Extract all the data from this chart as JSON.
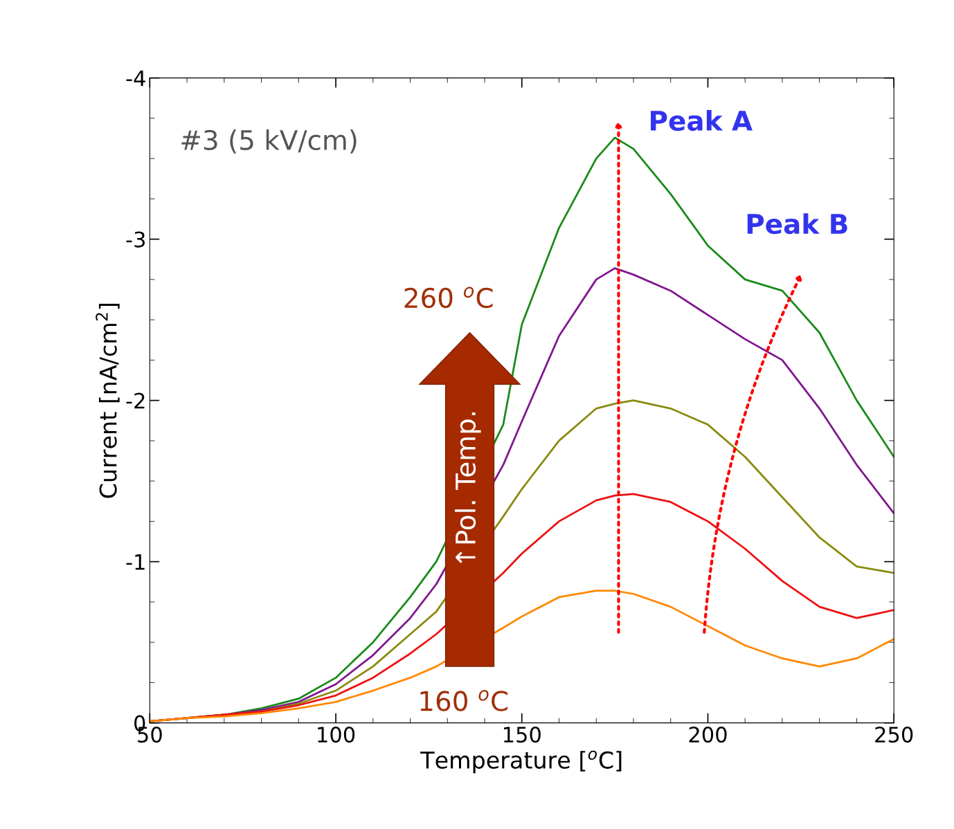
{
  "chart_data": {
    "type": "line",
    "xlabel": "Temperature [$^{o}$C]",
    "ylabel": "Current [nA/cm$^{2}$]",
    "xlim": [
      50,
      250
    ],
    "xticks": [
      50,
      100,
      150,
      200,
      250
    ],
    "ylim": [
      0,
      -4
    ],
    "yticks": [
      0,
      -1,
      -2,
      -3,
      -4
    ],
    "grid": false,
    "marker": "none",
    "line_style": "solid",
    "annotations": [
      "#3 (5 kV/cm)",
      "Peak A",
      "Peak B",
      "260 $^{o}$C",
      "160 $^{o}$C",
      "↑Pol. Temp."
    ],
    "x": [
      50,
      60,
      70,
      80,
      90,
      100,
      110,
      120,
      127,
      145,
      150,
      160,
      170,
      175,
      180,
      190,
      200,
      210,
      220,
      230,
      240,
      250
    ],
    "series": [
      {
        "color": "#1a8a1a",
        "values": [
          -0.01,
          -0.03,
          -0.05,
          -0.09,
          -0.15,
          -0.28,
          -0.5,
          -0.78,
          -1.0,
          -1.85,
          -2.47,
          -3.07,
          -3.5,
          -3.63,
          -3.56,
          -3.28,
          -2.96,
          -2.75,
          -2.68,
          -2.42,
          -2.0,
          -1.65
        ]
      },
      {
        "color": "#80168f",
        "values": [
          -0.01,
          -0.03,
          -0.05,
          -0.08,
          -0.13,
          -0.24,
          -0.42,
          -0.65,
          -0.86,
          -1.6,
          -1.87,
          -2.4,
          -2.75,
          -2.82,
          -2.78,
          -2.68,
          -2.53,
          -2.38,
          -2.25,
          -1.95,
          -1.6,
          -1.3
        ]
      },
      {
        "color": "#8a8a10",
        "values": [
          -0.01,
          -0.03,
          -0.05,
          -0.07,
          -0.12,
          -0.2,
          -0.35,
          -0.55,
          -0.69,
          -1.28,
          -1.45,
          -1.75,
          -1.95,
          -1.98,
          -2.0,
          -1.95,
          -1.85,
          -1.65,
          -1.4,
          -1.15,
          -0.97,
          -0.93
        ]
      },
      {
        "color": "#ee1111",
        "values": [
          -0.01,
          -0.03,
          -0.05,
          -0.07,
          -0.11,
          -0.17,
          -0.28,
          -0.43,
          -0.55,
          -0.93,
          -1.05,
          -1.25,
          -1.38,
          -1.41,
          -1.42,
          -1.37,
          -1.25,
          -1.08,
          -0.88,
          -0.72,
          -0.65,
          -0.7
        ]
      },
      {
        "color": "#ff8800",
        "values": [
          -0.01,
          -0.03,
          -0.04,
          -0.06,
          -0.09,
          -0.13,
          -0.2,
          -0.28,
          -0.35,
          -0.59,
          -0.66,
          -0.78,
          -0.82,
          -0.82,
          -0.8,
          -0.72,
          -0.6,
          -0.48,
          -0.4,
          -0.35,
          -0.4,
          -0.52
        ]
      }
    ]
  }
}
